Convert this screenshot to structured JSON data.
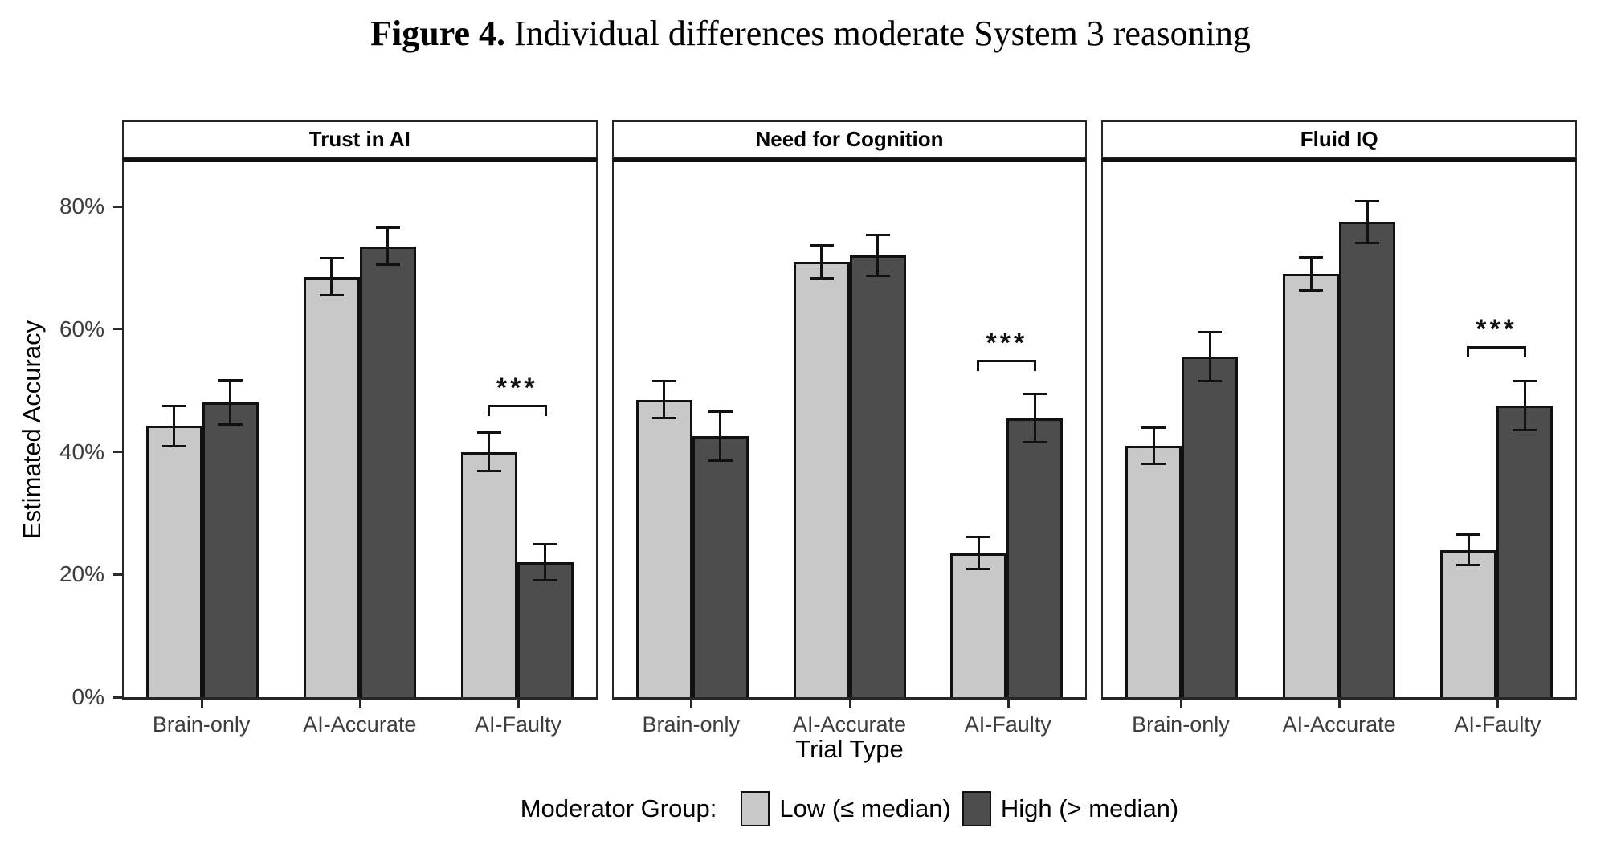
{
  "title": {
    "prefix": "Figure 4.",
    "text": " Individual differences moderate System 3 reasoning"
  },
  "axes": {
    "y_title": "Estimated Accuracy",
    "x_title": "Trial Type",
    "y_tick_labels": [
      "0%",
      "20%",
      "40%",
      "60%",
      "80%"
    ],
    "y_tick_values": [
      0,
      20,
      40,
      60,
      80
    ]
  },
  "legend": {
    "title": "Moderator Group:",
    "items": [
      {
        "label": "Low (≤ median)",
        "color": "#c8c8c8"
      },
      {
        "label": "High (> median)",
        "color": "#4d4d4d"
      }
    ]
  },
  "colors": {
    "low_fill": "#c8c8c8",
    "high_fill": "#4d4d4d",
    "bar_border": "#111111",
    "panel_border": "#262626",
    "axis_text": "#3d3d3d"
  },
  "chart_data": {
    "type": "bar",
    "title": "Figure 4. Individual differences moderate System 3 reasoning",
    "xlabel": "Trial Type",
    "ylabel": "Estimated Accuracy",
    "units": "percent",
    "ylim": [
      0,
      87.2
    ],
    "grid": false,
    "legend_position": "bottom",
    "categories": [
      "Brain-only",
      "AI-Accurate",
      "AI-Faulty"
    ],
    "facets": [
      {
        "label": "Trust in AI",
        "categories": [
          "Brain-only",
          "AI-Accurate",
          "AI-Faulty"
        ],
        "series": [
          {
            "name": "Low (≤ median)",
            "color": "#c8c8c8",
            "values": [
              44.2,
              68.5,
              40.0
            ],
            "errors": [
              3.3,
              3.0,
              3.1
            ]
          },
          {
            "name": "High (> median)",
            "color": "#4d4d4d",
            "values": [
              48.0,
              73.5,
              22.0
            ],
            "errors": [
              3.6,
              3.0,
              2.9
            ]
          }
        ],
        "significance": {
          "category": "AI-Faulty",
          "label": "***",
          "bracket_y_pct": 47.7
        }
      },
      {
        "label": "Need for Cognition",
        "categories": [
          "Brain-only",
          "AI-Accurate",
          "AI-Faulty"
        ],
        "series": [
          {
            "name": "Low (≤ median)",
            "color": "#c8c8c8",
            "values": [
              48.5,
              71.0,
              23.5
            ],
            "errors": [
              3.0,
              2.7,
              2.6
            ]
          },
          {
            "name": "High (> median)",
            "color": "#4d4d4d",
            "values": [
              42.5,
              72.0,
              45.5
            ],
            "errors": [
              4.0,
              3.3,
              3.9
            ]
          }
        ],
        "significance": {
          "category": "AI-Faulty",
          "label": "***",
          "bracket_y_pct": 55.0
        }
      },
      {
        "label": "Fluid IQ",
        "categories": [
          "Brain-only",
          "AI-Accurate",
          "AI-Faulty"
        ],
        "series": [
          {
            "name": "Low (≤ median)",
            "color": "#c8c8c8",
            "values": [
              41.0,
              69.0,
              24.0
            ],
            "errors": [
              2.9,
              2.7,
              2.5
            ]
          },
          {
            "name": "High (> median)",
            "color": "#4d4d4d",
            "values": [
              55.5,
              77.5,
              47.5
            ],
            "errors": [
              4.0,
              3.4,
              4.0
            ]
          }
        ],
        "significance": {
          "category": "AI-Faulty",
          "label": "***",
          "bracket_y_pct": 57.2
        }
      }
    ]
  }
}
